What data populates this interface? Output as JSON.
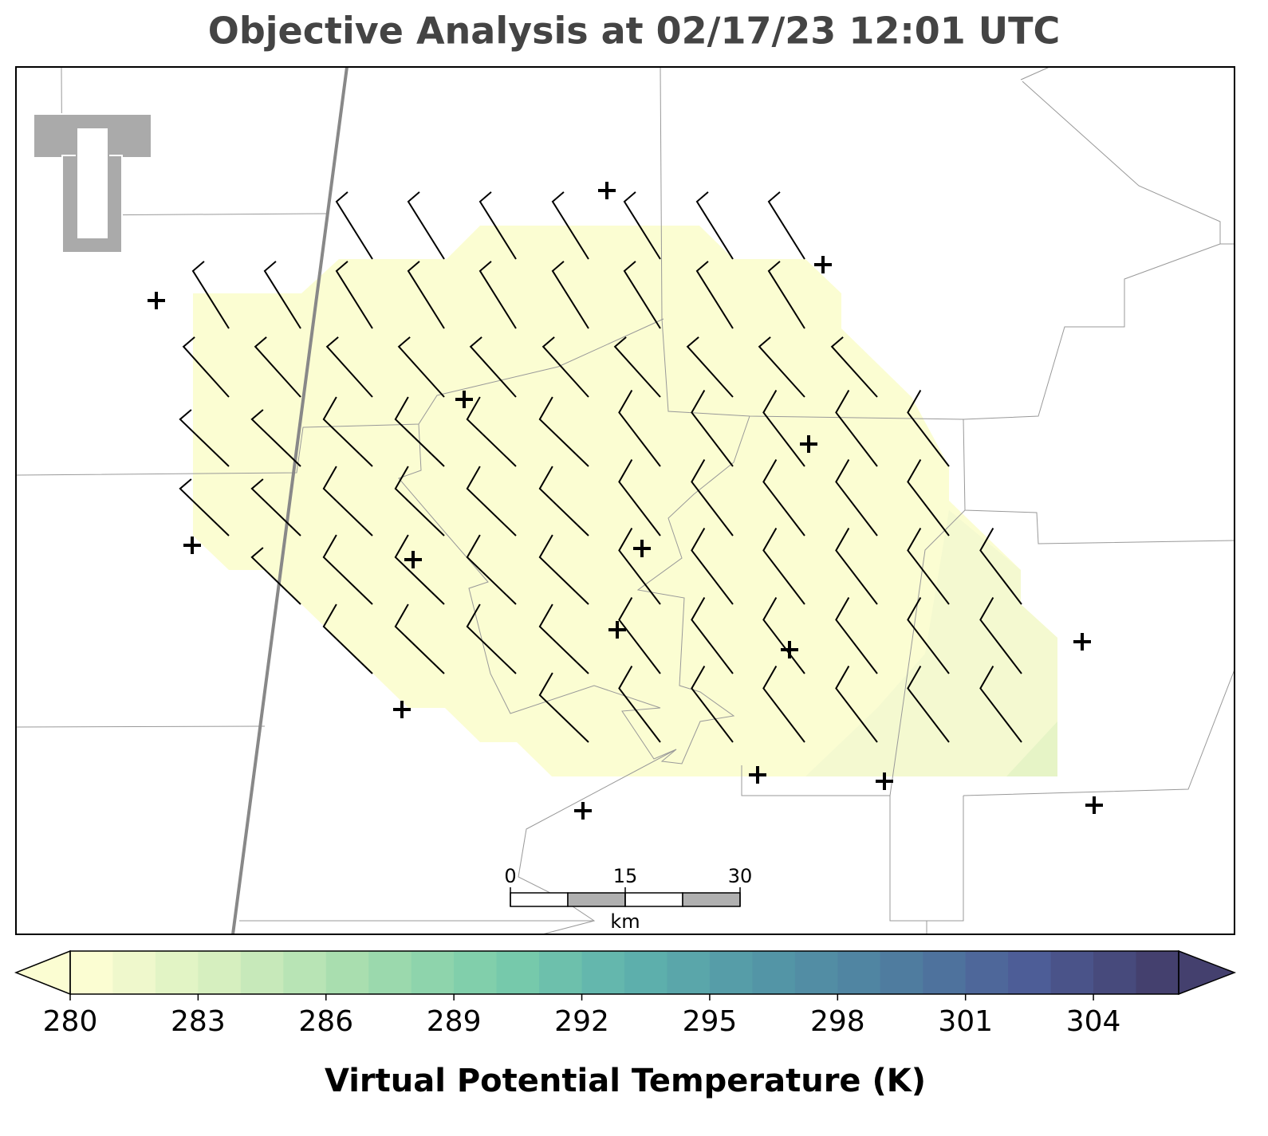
{
  "title": "Objective Analysis at 02/17/23 12:01 UTC",
  "scale_bar": {
    "ticks": [
      0,
      15,
      30
    ],
    "lim": [
      0,
      30
    ],
    "unit": "km"
  },
  "colorbar": {
    "label": "Virtual Potential Temperature (K)",
    "lim": [
      280,
      306
    ],
    "ticks": [
      280,
      283,
      286,
      289,
      292,
      295,
      298,
      301,
      304
    ],
    "colors": [
      "#fbfdd2",
      "#44406e"
    ]
  }
}
